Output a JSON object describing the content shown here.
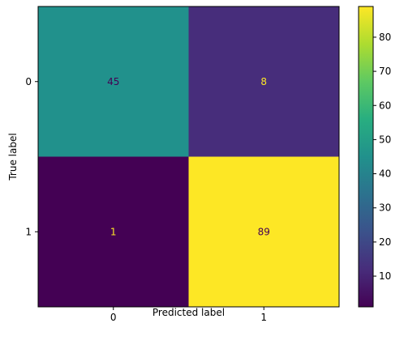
{
  "chart_data": {
    "type": "heatmap",
    "title": "",
    "xlabel": "Predicted label",
    "ylabel": "True label",
    "x_categories": [
      "0",
      "1"
    ],
    "y_categories": [
      "0",
      "1"
    ],
    "values": [
      [
        45,
        8
      ],
      [
        1,
        89
      ]
    ],
    "cell_colors": [
      [
        "#21918c",
        "#472d7b"
      ],
      [
        "#440154",
        "#fde725"
      ]
    ],
    "cell_label_colors": [
      [
        "#440154",
        "#fde725"
      ],
      [
        "#fde725",
        "#440154"
      ]
    ],
    "colormap": "viridis",
    "colorbar": {
      "min": 1,
      "max": 89,
      "ticks": [
        10,
        20,
        30,
        40,
        50,
        60,
        70,
        80
      ],
      "tick_labels": [
        "10",
        "20",
        "30",
        "40",
        "50",
        "60",
        "70",
        "80"
      ]
    },
    "grid": false,
    "legend": "colorbar-right"
  }
}
